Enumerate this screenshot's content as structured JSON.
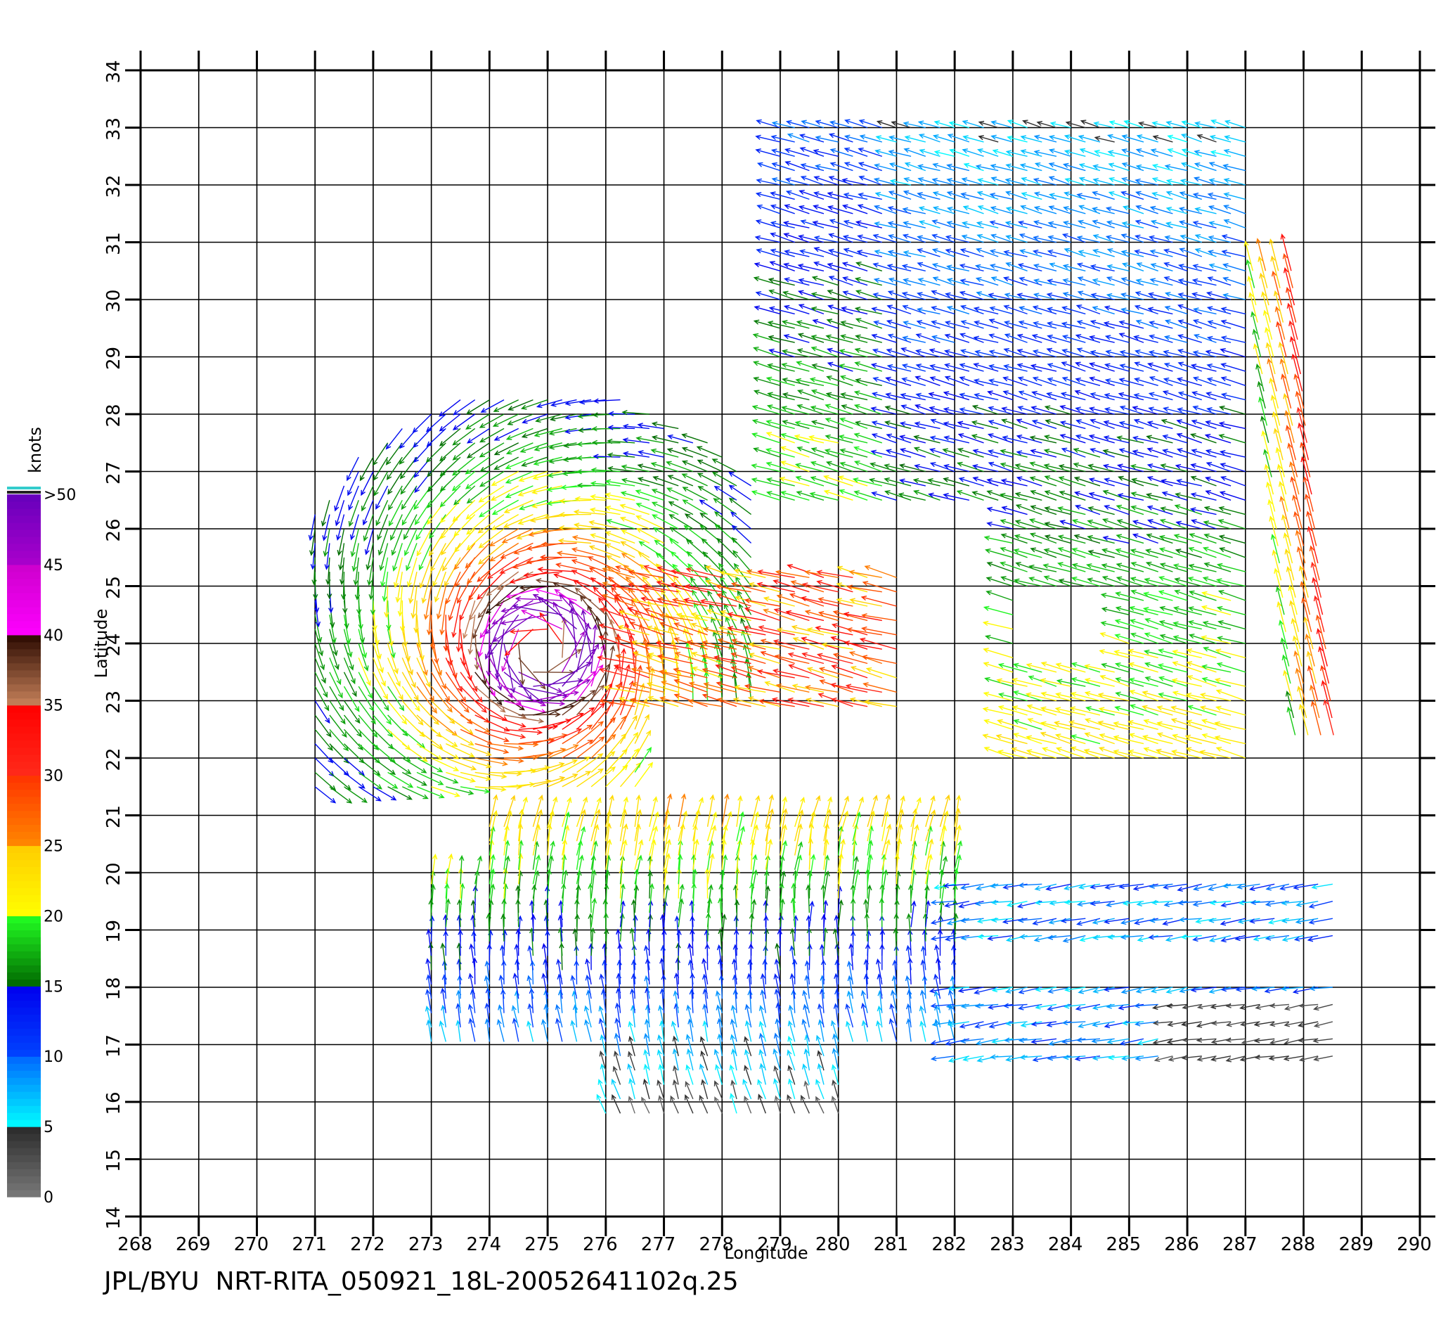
{
  "chart_data": {
    "type": "scatter",
    "title": "",
    "xlabel": "Longitude",
    "ylabel": "Latitude",
    "xlim": [
      268,
      290
    ],
    "ylim": [
      14,
      34
    ],
    "x_ticks": [
      "268",
      "269",
      "270",
      "271",
      "272",
      "273",
      "274",
      "275",
      "276",
      "277",
      "278",
      "279",
      "280",
      "281",
      "282",
      "283",
      "284",
      "285",
      "286",
      "287",
      "288",
      "289",
      "290"
    ],
    "y_ticks": [
      "14",
      "15",
      "16",
      "17",
      "18",
      "19",
      "20",
      "21",
      "22",
      "23",
      "24",
      "25",
      "26",
      "27",
      "28",
      "29",
      "30",
      "31",
      "32",
      "33",
      "34"
    ],
    "grid": true,
    "colorbar": {
      "title": "knots",
      "labels": [
        "0",
        "5",
        "10",
        "15",
        "20",
        "25",
        "30",
        "35",
        "40",
        "45",
        ">50"
      ],
      "bands": [
        {
          "min": 0,
          "max": 5,
          "colors": [
            "#7a7a7a",
            "#2a2a2a"
          ]
        },
        {
          "min": 5,
          "max": 10,
          "colors": [
            "#00ffff",
            "#0066ff"
          ]
        },
        {
          "min": 10,
          "max": 15,
          "colors": [
            "#0044ff",
            "#0000ee"
          ]
        },
        {
          "min": 15,
          "max": 20,
          "colors": [
            "#006600",
            "#22ff22"
          ]
        },
        {
          "min": 20,
          "max": 25,
          "colors": [
            "#ffff00",
            "#ffcc00"
          ]
        },
        {
          "min": 25,
          "max": 30,
          "colors": [
            "#ff8800",
            "#ff3300"
          ]
        },
        {
          "min": 30,
          "max": 35,
          "colors": [
            "#ff2a1a",
            "#ff0000"
          ]
        },
        {
          "min": 35,
          "max": 40,
          "colors": [
            "#c8825a",
            "#2b0a00"
          ]
        },
        {
          "min": 40,
          "max": 45,
          "colors": [
            "#ff00ff",
            "#cc00cc"
          ]
        },
        {
          "min": 45,
          "max": 50,
          "colors": [
            "#aa00cc",
            "#6600bb"
          ]
        }
      ]
    },
    "series": [
      {
        "region": "hurricane_center",
        "value_type": "vortex",
        "center": [
          274.9,
          23.9
        ],
        "rmin": 0.3,
        "rmax": 4.6,
        "lon": [
          271,
          278.5
        ],
        "lat": [
          21.5,
          30
        ],
        "max_speed": 52,
        "rmw": 0.8
      },
      {
        "region": "north_east_swath",
        "value_type": "east_flow",
        "lon": [
          279.0,
          287.0
        ],
        "lat": [
          22.0,
          33.2
        ],
        "speeds": [
          6,
          22
        ]
      },
      {
        "region": "south_swath",
        "value_type": "north_flow",
        "lon": [
          273,
          282
        ],
        "lat": [
          15.8,
          21.0
        ],
        "speeds": [
          3,
          24
        ]
      },
      {
        "region": "south_east_swath",
        "value_type": "west_flow",
        "lon": [
          282,
          288.5
        ],
        "lat": [
          16.8,
          20.0
        ],
        "speeds": [
          3,
          14
        ]
      }
    ]
  },
  "footer": "JPL/BYU  NRT-RITA_050921_18L-20052641102q.25"
}
